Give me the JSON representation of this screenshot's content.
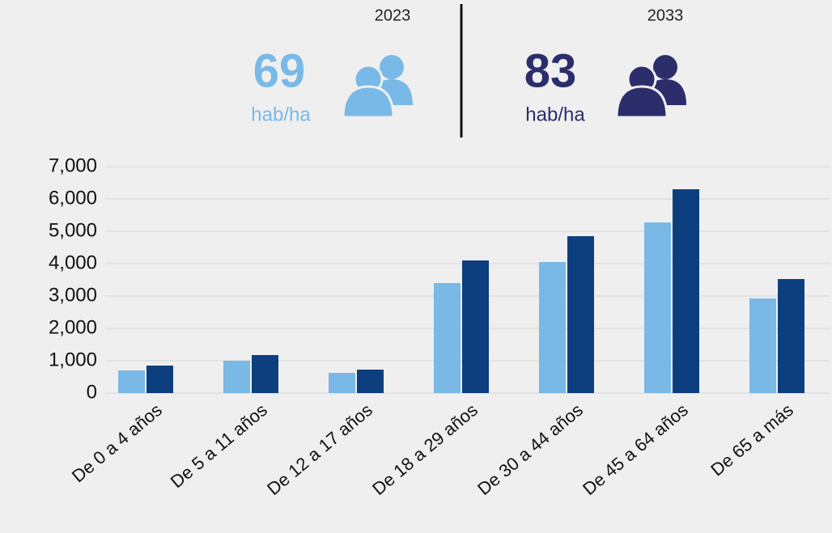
{
  "chart_data": {
    "type": "bar",
    "categories": [
      "De 0 a 4 años",
      "De 5 a 11 años",
      "De 12 a 17 años",
      "De 18 a 29 años",
      "De 30 a 44 años",
      "De 45 a 64 años",
      "De 65 a más"
    ],
    "series": [
      {
        "name": "2023",
        "color": "#7ab8e6",
        "density": 69,
        "density_unit": "hab/ha",
        "values": [
          700,
          1000,
          625,
          3400,
          4050,
          5275,
          2925
        ]
      },
      {
        "name": "2033",
        "color": "#0d3f7f",
        "density": 83,
        "density_unit": "hab/ha",
        "values": [
          850,
          1175,
          725,
          4100,
          4850,
          6300,
          3525
        ]
      }
    ],
    "ylim": [
      0,
      7000
    ],
    "yticks": [
      0,
      {
        "value": 1000,
        "label": "1,000"
      },
      {
        "value": 2000,
        "label": "2,000"
      },
      {
        "value": 3000,
        "label": "3,000"
      },
      {
        "value": 4000,
        "label": "4,000"
      },
      {
        "value": 5000,
        "label": "5,000"
      },
      {
        "value": 6000,
        "label": "6,000"
      },
      {
        "value": 7000,
        "label": "7,000"
      }
    ],
    "grid": true
  }
}
